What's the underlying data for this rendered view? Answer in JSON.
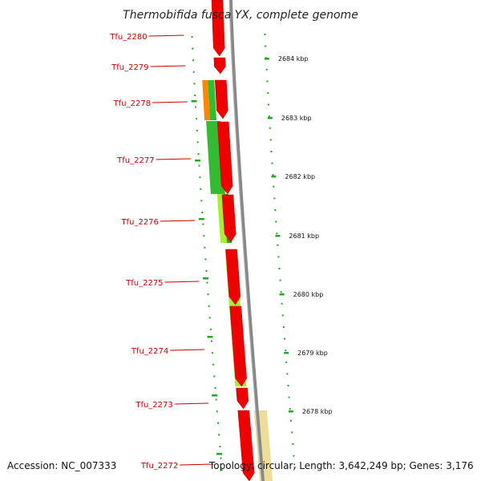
{
  "title": "Thermobifida fusca YX, complete genome",
  "footer": {
    "accession": "Accession: NC_007333",
    "stats": "Topology: circular; Length: 3,642,249 bp; Genes: 3,176"
  },
  "genes": [
    "Tfu_2280",
    "Tfu_2279",
    "Tfu_2278",
    "Tfu_2277",
    "Tfu_2276",
    "Tfu_2275",
    "Tfu_2274",
    "Tfu_2273",
    "Tfu_2272"
  ],
  "ticks": [
    "2684 kbp",
    "2683 kbp",
    "2682 kbp",
    "2681 kbp",
    "2680 kbp",
    "2679 kbp",
    "2678 kbp"
  ],
  "colors": {
    "gene_feature": "#ee0000",
    "gc_yellow_green": "#aaee33",
    "gc_green": "#33bb33",
    "gc_orange": "#ff8800",
    "gc_pale": "#eedd99",
    "tick_green": "#22aa22",
    "label_red": "#cc0000",
    "backbone": "#888888"
  }
}
